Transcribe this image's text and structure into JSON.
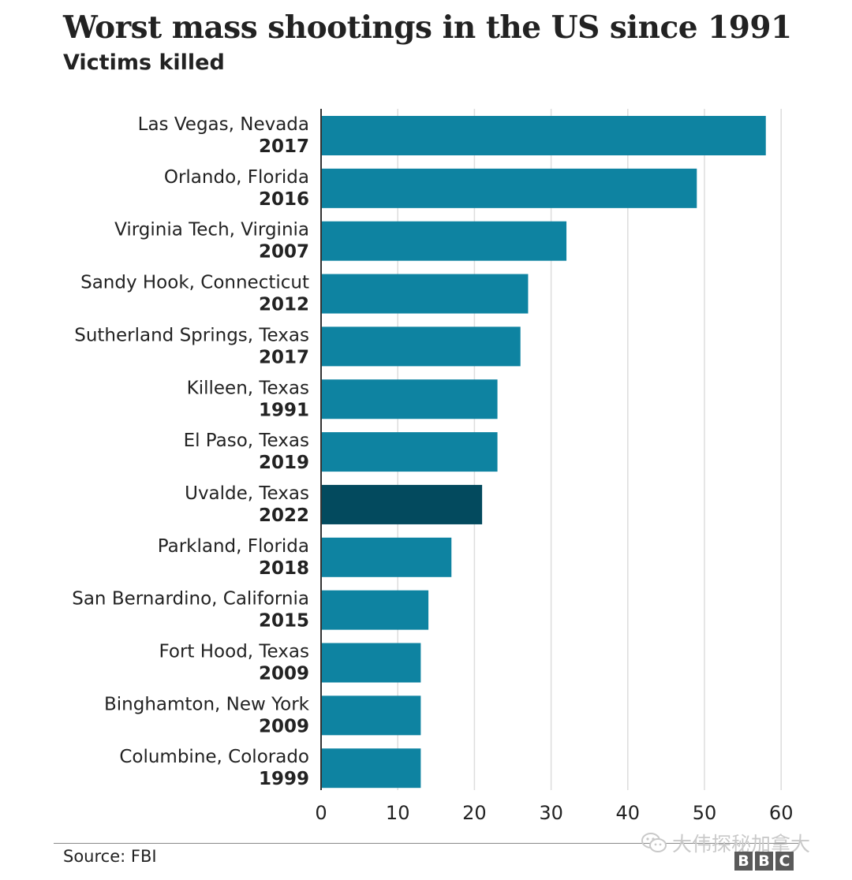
{
  "title": "Worst mass shootings in the US since 1991",
  "subtitle": "Victims killed",
  "source": "Source: FBI",
  "watermark_text": "大伟探秘加拿大",
  "logo": [
    "B",
    "B",
    "C"
  ],
  "colors": {
    "bar": "#0e83a1",
    "highlight": "#034a5e",
    "grid": "#dddddd",
    "text": "#222222"
  },
  "chart_data": {
    "type": "bar",
    "orientation": "horizontal",
    "title": "Worst mass shootings in the US since 1991",
    "subtitle": "Victims killed",
    "xlim": [
      0,
      60
    ],
    "xticks": [
      0,
      10,
      20,
      30,
      40,
      50,
      60
    ],
    "grid": true,
    "highlight_index": 7,
    "categories": [
      {
        "place": "Las Vegas, Nevada",
        "year": "2017"
      },
      {
        "place": "Orlando, Florida",
        "year": "2016"
      },
      {
        "place": "Virginia Tech, Virginia",
        "year": "2007"
      },
      {
        "place": "Sandy Hook, Connecticut",
        "year": "2012"
      },
      {
        "place": "Sutherland Springs, Texas",
        "year": "2017"
      },
      {
        "place": "Killeen, Texas",
        "year": "1991"
      },
      {
        "place": "El Paso, Texas",
        "year": "2019"
      },
      {
        "place": "Uvalde, Texas",
        "year": "2022"
      },
      {
        "place": "Parkland, Florida",
        "year": "2018"
      },
      {
        "place": "San Bernardino, California",
        "year": "2015"
      },
      {
        "place": "Fort Hood, Texas",
        "year": "2009"
      },
      {
        "place": "Binghamton, New York",
        "year": "2009"
      },
      {
        "place": "Columbine, Colorado",
        "year": "1999"
      }
    ],
    "values": [
      58,
      49,
      32,
      27,
      26,
      23,
      23,
      21,
      17,
      14,
      13,
      13,
      13
    ]
  }
}
